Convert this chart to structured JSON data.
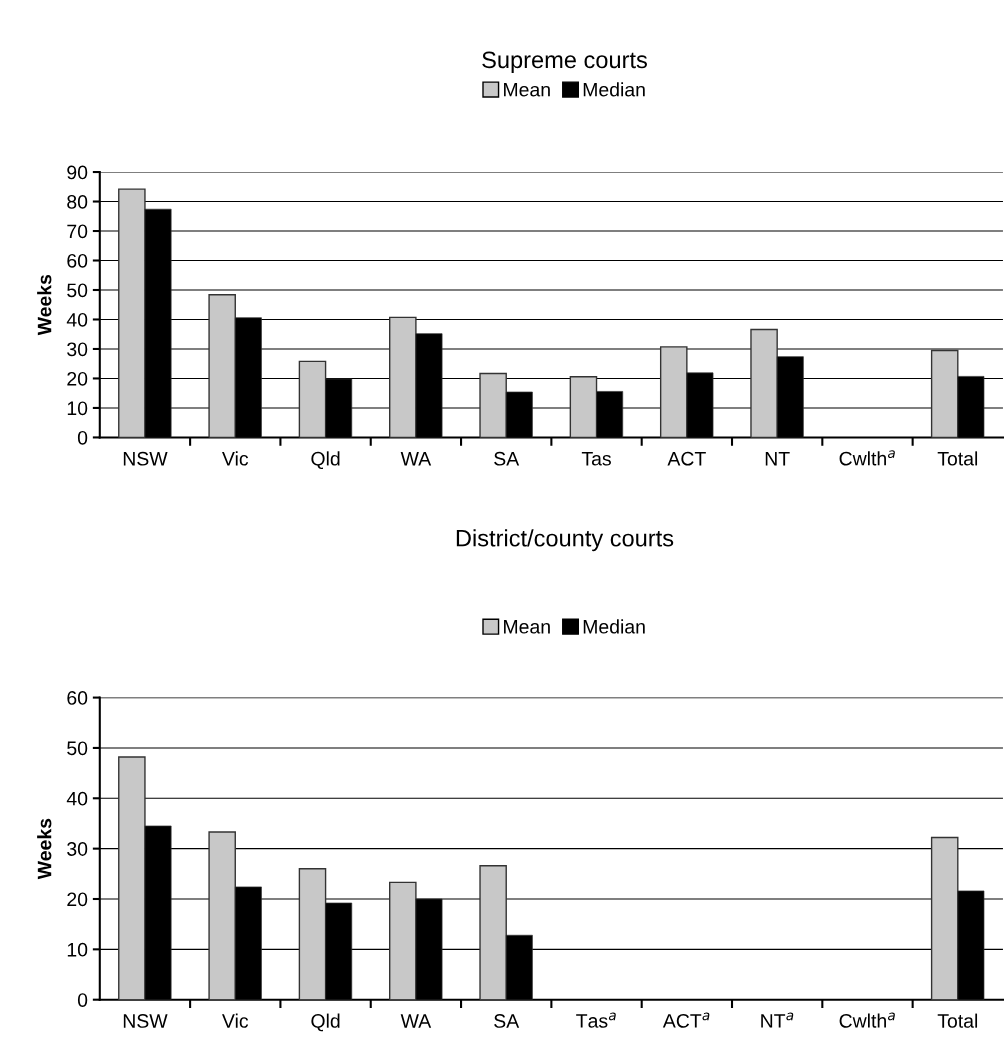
{
  "chart_data": [
    {
      "type": "bar",
      "title": "Supreme courts",
      "ylabel": "Weeks",
      "categories": [
        "NSW",
        "Vic",
        "Qld",
        "WA",
        "SA",
        "Tas",
        "ACT",
        "NT",
        "Cwlth$^{a}$",
        "Total"
      ],
      "series": [
        {
          "name": "Mean",
          "color": "#c8c8c8",
          "values": [
            84.2,
            48.4,
            25.8,
            40.7,
            21.7,
            20.6,
            30.7,
            36.6,
            null,
            29.5
          ]
        },
        {
          "name": "Median",
          "color": "#000000",
          "values": [
            77.4,
            40.6,
            19.8,
            35.2,
            15.4,
            15.6,
            21.9,
            27.4,
            null,
            20.7
          ]
        }
      ],
      "ylim": [
        0,
        90
      ],
      "yticks": [
        0,
        10,
        20,
        30,
        40,
        50,
        60,
        70,
        80,
        90
      ],
      "grid": "y",
      "legend": "top"
    },
    {
      "type": "bar",
      "title": "District/county courts",
      "ylabel": "Weeks",
      "categories": [
        "NSW",
        "Vic",
        "Qld",
        "WA",
        "SA",
        "Tas$^{a}$",
        "ACT$^{a}$",
        "NT$^{a}$",
        "Cwlth$^{a}$",
        "Total"
      ],
      "series": [
        {
          "name": "Mean",
          "color": "#c8c8c8",
          "values": [
            48.2,
            33.3,
            26.0,
            23.3,
            26.6,
            null,
            null,
            null,
            null,
            32.2
          ]
        },
        {
          "name": "Median",
          "color": "#000000",
          "values": [
            34.5,
            22.4,
            19.2,
            20.0,
            12.8,
            null,
            null,
            null,
            null,
            21.6
          ]
        }
      ],
      "ylim": [
        0,
        60
      ],
      "yticks": [
        0,
        10,
        20,
        30,
        40,
        50,
        60
      ],
      "grid": "y",
      "legend": "top"
    }
  ]
}
